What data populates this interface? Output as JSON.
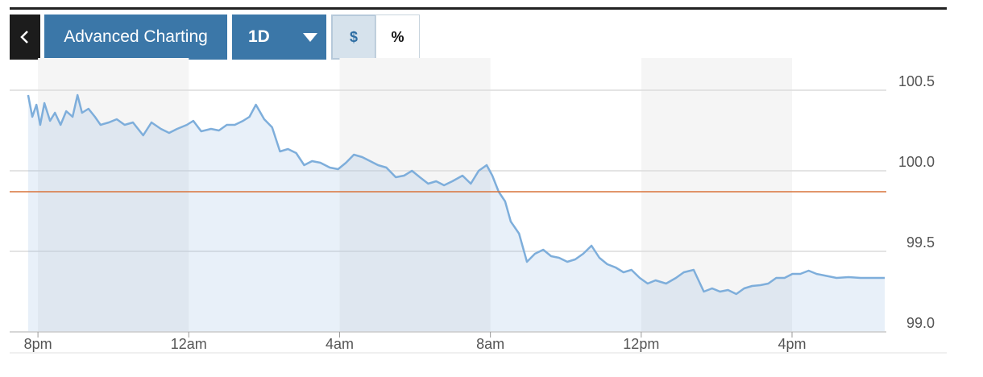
{
  "toolbar": {
    "chart_button": "Advanced Charting",
    "range": "1D",
    "currency": "$",
    "percent": "%"
  },
  "chart_data": {
    "type": "area",
    "x": [
      -0.26,
      -0.15,
      -0.04,
      0.06,
      0.17,
      0.32,
      0.45,
      0.6,
      0.75,
      0.92,
      1.05,
      1.17,
      1.34,
      1.51,
      1.66,
      1.88,
      2.09,
      2.3,
      2.52,
      2.79,
      3.01,
      3.26,
      3.48,
      3.69,
      3.95,
      4.12,
      4.33,
      4.59,
      4.8,
      5.01,
      5.22,
      5.44,
      5.61,
      5.78,
      6.0,
      6.21,
      6.42,
      6.63,
      6.85,
      7.06,
      7.27,
      7.49,
      7.74,
      7.96,
      8.17,
      8.38,
      8.6,
      8.81,
      9.02,
      9.24,
      9.49,
      9.71,
      9.92,
      10.13,
      10.35,
      10.56,
      10.77,
      10.99,
      11.26,
      11.48,
      11.69,
      11.9,
      12.05,
      12.22,
      12.39,
      12.54,
      12.76,
      12.97,
      13.18,
      13.4,
      13.61,
      13.82,
      14.04,
      14.25,
      14.46,
      14.68,
      14.89,
      15.1,
      15.32,
      15.53,
      15.74,
      15.96,
      16.17,
      16.38,
      16.66,
      16.92,
      17.13,
      17.39,
      17.66,
      17.88,
      18.09,
      18.3,
      18.52,
      18.73,
      18.94,
      19.16,
      19.37,
      19.58,
      19.8,
      20.01,
      20.22,
      20.44,
      20.65,
      20.86,
      21.18,
      21.5,
      21.82,
      22.14,
      22.46
    ],
    "series": [
      {
        "color": "#7eaedb",
        "values": [
          100.47,
          100.335,
          100.41,
          100.285,
          100.42,
          100.31,
          100.36,
          100.285,
          100.37,
          100.335,
          100.47,
          100.36,
          100.385,
          100.335,
          100.285,
          100.3,
          100.32,
          100.285,
          100.3,
          100.22,
          100.3,
          100.26,
          100.235,
          100.26,
          100.285,
          100.31,
          100.245,
          100.26,
          100.25,
          100.285,
          100.285,
          100.31,
          100.335,
          100.41,
          100.32,
          100.27,
          100.12,
          100.135,
          100.11,
          100.035,
          100.06,
          100.05,
          100.02,
          100.01,
          100.05,
          100.1,
          100.085,
          100.06,
          100.035,
          100.02,
          99.96,
          99.97,
          100.0,
          99.96,
          99.92,
          99.935,
          99.91,
          99.935,
          99.97,
          99.92,
          100.0,
          100.035,
          99.97,
          99.87,
          99.81,
          99.685,
          99.61,
          99.435,
          99.485,
          99.51,
          99.47,
          99.46,
          99.435,
          99.45,
          99.485,
          99.535,
          99.46,
          99.42,
          99.4,
          99.37,
          99.385,
          99.335,
          99.3,
          99.32,
          99.3,
          99.335,
          99.37,
          99.385,
          99.25,
          99.27,
          99.25,
          99.26,
          99.235,
          99.27,
          99.285,
          99.29,
          99.3,
          99.335,
          99.335,
          99.36,
          99.36,
          99.38,
          99.36,
          99.35,
          99.335,
          99.34,
          99.335,
          99.335,
          99.335
        ]
      }
    ],
    "reference_line": {
      "value": 99.87,
      "color": "#d9733a"
    },
    "xlim": [
      -0.75,
      22.5
    ],
    "xticks": [
      {
        "value": 0,
        "label": "8pm"
      },
      {
        "value": 4,
        "label": "12am"
      },
      {
        "value": 8,
        "label": "4am"
      },
      {
        "value": 12,
        "label": "8am"
      },
      {
        "value": 16,
        "label": "12pm"
      },
      {
        "value": 20,
        "label": "4pm"
      }
    ],
    "ylim": [
      99.0,
      100.7
    ],
    "yticks": [
      {
        "value": 99.0,
        "label": "99.0"
      },
      99.5,
      {
        "value": 100.0,
        "label": "100.0"
      },
      100.5
    ],
    "grid": true
  }
}
